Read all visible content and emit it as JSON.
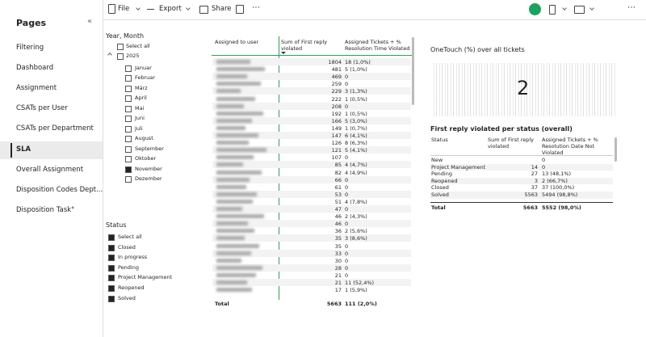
{
  "nav": {
    "title": "Pages",
    "collapse": "«",
    "pages": [
      "Filtering",
      "Dashboard",
      "Assignment",
      "CSATs per User",
      "CSATs per Department",
      "SLA",
      "Overall Assignment",
      "Disposition Codes Dept...",
      "Disposition Task°"
    ],
    "selected": 5
  },
  "toolbar": {
    "file": "File",
    "export": "Export",
    "share": "Share",
    "more": "⋯",
    "right_more": "⋯"
  },
  "year_slicer": {
    "title": "Year, Month",
    "select_all": "Select all",
    "year": "2025",
    "months": [
      {
        "label": "Januar",
        "checked": false
      },
      {
        "label": "Februar",
        "checked": false
      },
      {
        "label": "März",
        "checked": false
      },
      {
        "label": "April",
        "checked": false
      },
      {
        "label": "Mai",
        "checked": false
      },
      {
        "label": "Juni",
        "checked": false
      },
      {
        "label": "Juli",
        "checked": false
      },
      {
        "label": "August",
        "checked": false
      },
      {
        "label": "September",
        "checked": false
      },
      {
        "label": "Oktober",
        "checked": false
      },
      {
        "label": "November",
        "checked": true
      },
      {
        "label": "Dezember",
        "checked": false
      }
    ]
  },
  "status_slicer": {
    "title": "Status",
    "items": [
      "Select all",
      "Closed",
      "In progress",
      "Pending",
      "Project Management",
      "Reopened",
      "Solved"
    ]
  },
  "user_table": {
    "headers": [
      "Assigned to user",
      "Sum of First reply violated",
      "Assigned Tickets + % Resolution Time Violated"
    ],
    "rows": [
      [
        1804,
        "18 (1,0%)"
      ],
      [
        481,
        "5 (1,0%)"
      ],
      [
        469,
        "0"
      ],
      [
        259,
        "0"
      ],
      [
        229,
        "3 (1,3%)"
      ],
      [
        222,
        "1 (0,5%)"
      ],
      [
        208,
        "0"
      ],
      [
        192,
        "1 (0,5%)"
      ],
      [
        166,
        "5 (3,0%)"
      ],
      [
        149,
        "1 (0,7%)"
      ],
      [
        147,
        "6 (4,1%)"
      ],
      [
        126,
        "8 (6,3%)"
      ],
      [
        121,
        "5 (4,1%)"
      ],
      [
        107,
        "0"
      ],
      [
        85,
        "4 (4,7%)"
      ],
      [
        82,
        "4 (4,9%)"
      ],
      [
        66,
        "0"
      ],
      [
        61,
        "0"
      ],
      [
        53,
        "0"
      ],
      [
        51,
        "4 (7,8%)"
      ],
      [
        47,
        "0"
      ],
      [
        46,
        "2 (4,3%)"
      ],
      [
        46,
        "0"
      ],
      [
        36,
        "2 (5,6%)"
      ],
      [
        35,
        "3 (8,6%)"
      ],
      [
        35,
        "0"
      ],
      [
        33,
        "0"
      ],
      [
        30,
        "0"
      ],
      [
        28,
        "0"
      ],
      [
        21,
        "0"
      ],
      [
        21,
        "11 (52,4%)"
      ],
      [
        17,
        "1 (5,9%)"
      ]
    ],
    "total": [
      "Total",
      5663,
      "111 (2,0%)"
    ]
  },
  "card": {
    "title": "OneTouch (%) over all tickets",
    "value": 2
  },
  "status_table": {
    "title": "First reply violated per status (overall)",
    "headers": [
      "Status",
      "Sum of First reply violated",
      "Assigned Tickets + % Resolution Date Not Violated"
    ],
    "rows": [
      [
        "New",
        null,
        "0"
      ],
      [
        "Project Management",
        14,
        "0"
      ],
      [
        "Pending",
        27,
        "13 (48,1%)"
      ],
      [
        "Reopened",
        3,
        "2 (66,7%)"
      ],
      [
        "Closed",
        37,
        "37 (100,0%)"
      ],
      [
        "Solved",
        5563,
        "5494 (98,8%)"
      ]
    ],
    "total": [
      "Total",
      5663,
      "5552 (98,0%)"
    ]
  }
}
